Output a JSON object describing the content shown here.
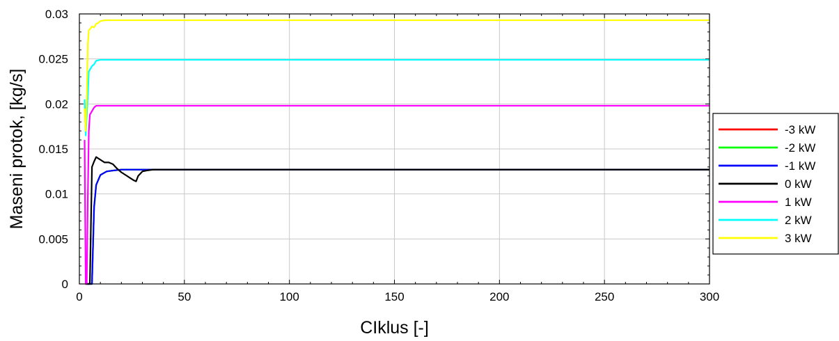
{
  "chart_data": {
    "type": "line",
    "xlabel": "CIklus [-]",
    "ylabel": "Maseni protok, [kg/s]",
    "xlim": [
      0,
      300
    ],
    "ylim": [
      0,
      0.03
    ],
    "xticks": [
      0,
      50,
      100,
      150,
      200,
      250,
      300
    ],
    "xtick_labels": [
      "0",
      "50",
      "100",
      "150",
      "200",
      "250",
      "300"
    ],
    "yticks": [
      0,
      0.005,
      0.01,
      0.015,
      0.02,
      0.025,
      0.03
    ],
    "ytick_labels": [
      "0",
      "0.005",
      "0.01",
      "0.015",
      "0.02",
      "0.025",
      "0.03"
    ],
    "grid": true,
    "legend_position": "right-outside",
    "series": [
      {
        "name": "-3 kW",
        "color": "#ff0000",
        "x": [
          3,
          4,
          5,
          6,
          7,
          8,
          10,
          13,
          16,
          20,
          25,
          30,
          40,
          50,
          100,
          150,
          200,
          250,
          300
        ],
        "y": [
          0.0,
          0.0,
          0.0,
          0.0,
          0.0085,
          0.011,
          0.0121,
          0.0125,
          0.0126,
          0.0127,
          0.0127,
          0.0127,
          0.0127,
          0.0127,
          0.0127,
          0.0127,
          0.0127,
          0.0127,
          0.0127
        ]
      },
      {
        "name": "-2 kW",
        "color": "#00ff00",
        "x": [
          3,
          4,
          5,
          6,
          7,
          8,
          10,
          13,
          16,
          20,
          25,
          30,
          40,
          50,
          100,
          150,
          200,
          250,
          300
        ],
        "y": [
          0.0,
          0.0,
          0.0,
          0.0,
          0.0084,
          0.011,
          0.0121,
          0.0125,
          0.0126,
          0.0127,
          0.0127,
          0.0127,
          0.0127,
          0.0127,
          0.0127,
          0.0127,
          0.0127,
          0.0127,
          0.0127
        ]
      },
      {
        "name": "-1 kW",
        "color": "#0000ff",
        "x": [
          3,
          4,
          5,
          6,
          7,
          8,
          10,
          13,
          16,
          20,
          25,
          30,
          40,
          50,
          100,
          150,
          200,
          250,
          300
        ],
        "y": [
          0.0,
          0.0,
          0.0,
          0.0,
          0.0085,
          0.011,
          0.0121,
          0.0125,
          0.0126,
          0.0127,
          0.0127,
          0.0127,
          0.0127,
          0.0127,
          0.0127,
          0.0127,
          0.0127,
          0.0127,
          0.0127
        ]
      },
      {
        "name": "0 kW",
        "color": "#000000",
        "x": [
          3,
          4,
          5,
          6,
          7,
          8,
          10,
          12,
          14,
          16,
          18,
          20,
          22,
          24,
          26,
          27,
          28,
          30,
          32,
          35,
          40,
          50,
          100,
          150,
          200,
          250,
          300
        ],
        "y": [
          0.0,
          0.0,
          0.0,
          0.013,
          0.0136,
          0.0141,
          0.0138,
          0.0135,
          0.0135,
          0.0133,
          0.0128,
          0.0124,
          0.0121,
          0.0118,
          0.0115,
          0.0114,
          0.012,
          0.0125,
          0.0126,
          0.0127,
          0.0127,
          0.0127,
          0.0127,
          0.0127,
          0.0127,
          0.0127,
          0.0127
        ]
      },
      {
        "name": "1 kW",
        "color": "#ff00ff",
        "x": [
          2.5,
          3,
          3.5,
          4,
          4.5,
          5,
          6,
          7,
          8,
          10,
          15,
          20,
          50,
          100,
          150,
          200,
          250,
          300
        ],
        "y": [
          0.016,
          0.0,
          0.0,
          0.0093,
          0.017,
          0.0188,
          0.0192,
          0.0196,
          0.0198,
          0.0198,
          0.0198,
          0.0198,
          0.0198,
          0.0198,
          0.0198,
          0.0198,
          0.0198,
          0.0198
        ]
      },
      {
        "name": "2 kW",
        "color": "#00ffff",
        "x": [
          2.5,
          3,
          3.5,
          4,
          4.5,
          5,
          6,
          7,
          8,
          10,
          15,
          20,
          50,
          100,
          150,
          200,
          250,
          300
        ],
        "y": [
          0.0205,
          0.0165,
          0.0185,
          0.0208,
          0.0236,
          0.0238,
          0.0242,
          0.0244,
          0.0248,
          0.0249,
          0.0249,
          0.0249,
          0.0249,
          0.0249,
          0.0249,
          0.0249,
          0.0249,
          0.0249
        ]
      },
      {
        "name": "3 kW",
        "color": "#ffff00",
        "x": [
          2.5,
          3,
          3.5,
          4,
          4.5,
          5,
          6,
          7,
          8,
          9,
          10,
          12,
          15,
          20,
          50,
          100,
          150,
          200,
          250,
          300
        ],
        "y": [
          0.0195,
          0.017,
          0.0205,
          0.0265,
          0.0282,
          0.0283,
          0.0286,
          0.0285,
          0.0289,
          0.029,
          0.0292,
          0.0293,
          0.0293,
          0.0293,
          0.0293,
          0.0293,
          0.0293,
          0.0293,
          0.0293,
          0.0293
        ]
      }
    ]
  }
}
